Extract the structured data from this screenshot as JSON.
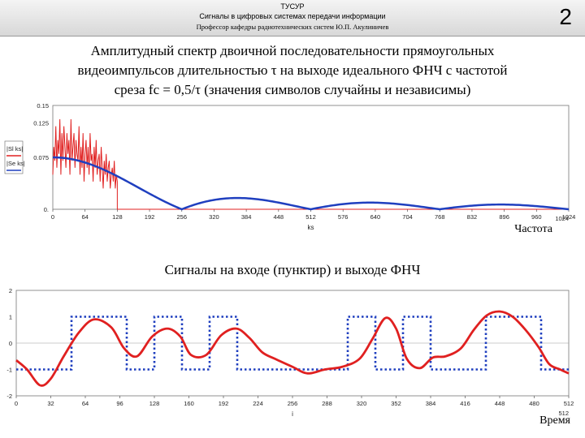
{
  "header": {
    "line1": "ТУСУР",
    "line2": "Сигналы в цифровых системах передачи информации",
    "line3": "Профессор кафедры радиотехнических систем Ю.П. Акулиничев",
    "slide_number": "2"
  },
  "caption": {
    "line1": "Амплитудный спектр двоичной последовательности прямоугольных",
    "line2": "видеоимпульсов длительностью τ на выходе идеального ФНЧ с частотой",
    "line3": "среза  fc = 0,5/τ (значения символов случайны и независимы)"
  },
  "section2_title": "Сигналы на входе (пунктир) и выходе ФНЧ",
  "chart_data": [
    {
      "type": "line",
      "title": "",
      "xlabel": "ks",
      "ylabel": "",
      "corner_label": "Частота",
      "x_end_label": "1024",
      "xlim": [
        0,
        1024
      ],
      "ylim": [
        0,
        0.15
      ],
      "x_ticks": [
        0,
        64,
        128,
        192,
        256,
        320,
        384,
        448,
        512,
        576,
        640,
        704,
        768,
        832,
        896,
        960,
        1024
      ],
      "y_tick_labels": [
        "0.15",
        "0.125",
        "0.075",
        "0."
      ],
      "y_tick_values": [
        0.15,
        0.125,
        0.075,
        0
      ],
      "legend_labels": [
        "|Sl ks|",
        "|Se ks|"
      ],
      "colors": {
        "sl": "#e02020",
        "se": "#1f3fbf"
      },
      "series": [
        {
          "key": "se",
          "description": "smooth |sinc| envelope, zeros at 256, 512, 768, 1024",
          "peak": 0.075,
          "first_zero": 256
        },
        {
          "key": "sl",
          "description": "noisy filtered spectrum, nonzero for 0..128",
          "cutoff": 128,
          "values": [
            0.05,
            0.09,
            0.07,
            0.12,
            0.06,
            0.1,
            0.08,
            0.13,
            0.05,
            0.11,
            0.07,
            0.12,
            0.09,
            0.06,
            0.11,
            0.08,
            0.1,
            0.05,
            0.13,
            0.07,
            0.09,
            0.11,
            0.06,
            0.1,
            0.08,
            0.07,
            0.12,
            0.05,
            0.09,
            0.06,
            0.11,
            0.04,
            0.08,
            0.1,
            0.06,
            0.09,
            0.05,
            0.11,
            0.07,
            0.08,
            0.04,
            0.09,
            0.06,
            0.1,
            0.05,
            0.07,
            0.08,
            0.04,
            0.09,
            0.06,
            0.03,
            0.07,
            0.05,
            0.08,
            0.04,
            0.06,
            0.07,
            0.03,
            0.05,
            0.06,
            0.04,
            0.07,
            0.03,
            0.05,
            0.04
          ]
        }
      ]
    },
    {
      "type": "line",
      "title": "",
      "xlabel": "i",
      "ylabel": "",
      "corner_label": "Время",
      "x_end_label": "512",
      "xlim": [
        0,
        512
      ],
      "ylim": [
        -2,
        2
      ],
      "x_ticks": [
        0,
        32,
        64,
        96,
        128,
        160,
        192,
        224,
        256,
        288,
        320,
        352,
        384,
        416,
        448,
        480,
        512
      ],
      "y_ticks": [
        2,
        1,
        0,
        -1,
        -2
      ],
      "colors": {
        "input": "#1f3fbf",
        "output": "#e02020"
      },
      "series": [
        {
          "key": "input",
          "style": "dotted",
          "bits": [
            -1,
            -1,
            1,
            1,
            -1,
            1,
            -1,
            1,
            -1,
            -1,
            -1,
            -1,
            1,
            -1,
            1,
            -1,
            -1,
            1,
            1,
            -1
          ],
          "bit_period": 25.6,
          "description": "rectangular binary sequence ±1"
        },
        {
          "key": "output",
          "style": "solid",
          "points": [
            [
              0,
              -0.65
            ],
            [
              10,
              -1.0
            ],
            [
              22,
              -1.6
            ],
            [
              32,
              -1.35
            ],
            [
              44,
              -0.5
            ],
            [
              58,
              0.4
            ],
            [
              72,
              0.9
            ],
            [
              88,
              0.6
            ],
            [
              100,
              -0.2
            ],
            [
              112,
              -0.5
            ],
            [
              126,
              0.25
            ],
            [
              140,
              0.55
            ],
            [
              152,
              0.25
            ],
            [
              162,
              -0.45
            ],
            [
              176,
              -0.45
            ],
            [
              190,
              0.3
            ],
            [
              204,
              0.55
            ],
            [
              216,
              0.2
            ],
            [
              228,
              -0.35
            ],
            [
              240,
              -0.6
            ],
            [
              256,
              -0.9
            ],
            [
              270,
              -1.15
            ],
            [
              286,
              -1.0
            ],
            [
              302,
              -0.9
            ],
            [
              318,
              -0.6
            ],
            [
              330,
              0.15
            ],
            [
              342,
              0.95
            ],
            [
              352,
              0.55
            ],
            [
              362,
              -0.6
            ],
            [
              374,
              -0.95
            ],
            [
              386,
              -0.55
            ],
            [
              398,
              -0.5
            ],
            [
              412,
              -0.2
            ],
            [
              424,
              0.5
            ],
            [
              436,
              1.05
            ],
            [
              448,
              1.2
            ],
            [
              460,
              1.0
            ],
            [
              472,
              0.5
            ],
            [
              484,
              -0.15
            ],
            [
              494,
              -0.8
            ],
            [
              504,
              -1.0
            ],
            [
              512,
              -1.15
            ]
          ]
        }
      ]
    }
  ]
}
